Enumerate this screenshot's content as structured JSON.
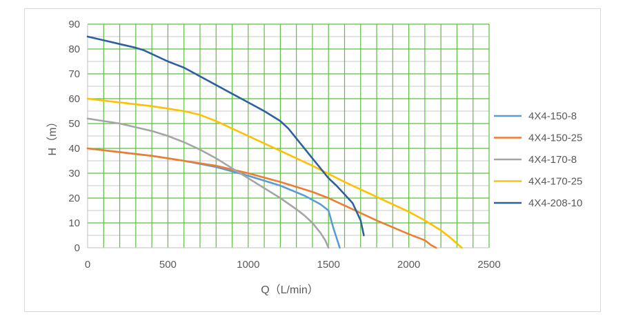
{
  "chart_data": {
    "type": "line",
    "title": "",
    "xlabel": "Q（L/min）",
    "ylabel": "H（m）",
    "xlim": [
      0,
      2500
    ],
    "ylim": [
      0,
      90
    ],
    "x_ticks": [
      0,
      500,
      1000,
      1500,
      2000,
      2500
    ],
    "y_ticks": [
      0,
      10,
      20,
      30,
      40,
      50,
      60,
      70,
      80,
      90
    ],
    "x_tick_labels": [
      "0",
      "500",
      "1000",
      "1500",
      "2000",
      "2500"
    ],
    "y_tick_labels": [
      "0",
      "10",
      "20",
      "30",
      "40",
      "50",
      "60",
      "70",
      "80",
      "90"
    ],
    "grid": true,
    "legend_position": "right",
    "colors": {
      "major_grid": "#5bbf3c",
      "minor_grid": "#c9c9c9",
      "axis": "#bfbfbf"
    },
    "series": [
      {
        "name": "4X4-150-8",
        "color": "#5b9bd5",
        "x": [
          0,
          200,
          400,
          600,
          800,
          1000,
          1200,
          1350,
          1450,
          1500,
          1530,
          1570
        ],
        "y": [
          40,
          38.5,
          37,
          35,
          32.5,
          29,
          25,
          21,
          17.5,
          15,
          8,
          0
        ]
      },
      {
        "name": "4X4-150-25",
        "color": "#ed7d31",
        "x": [
          0,
          200,
          400,
          600,
          800,
          1000,
          1200,
          1400,
          1500,
          1600,
          1800,
          2000,
          2100,
          2140,
          2170
        ],
        "y": [
          40,
          38.5,
          37,
          35,
          33,
          30,
          26.5,
          22.5,
          20,
          17,
          11,
          5.5,
          3,
          1,
          0
        ]
      },
      {
        "name": "4X4-170-8",
        "color": "#a5a5a5",
        "x": [
          0,
          100,
          200,
          300,
          400,
          500,
          600,
          700,
          800,
          900,
          1000,
          1100,
          1200,
          1300,
          1350,
          1400,
          1450,
          1480,
          1500
        ],
        "y": [
          52,
          51,
          50,
          48.5,
          47,
          45,
          42.5,
          39.5,
          36,
          32,
          28,
          24,
          20,
          15.5,
          13,
          10,
          6,
          3,
          0
        ]
      },
      {
        "name": "4X4-170-25",
        "color": "#ffc000",
        "x": [
          0,
          200,
          400,
          600,
          700,
          800,
          1000,
          1200,
          1400,
          1600,
          1800,
          2000,
          2100,
          2200,
          2260,
          2330
        ],
        "y": [
          60,
          58.5,
          57,
          55,
          53.5,
          51,
          45,
          39,
          33,
          26.5,
          20.5,
          14.5,
          11,
          7,
          4,
          0
        ]
      },
      {
        "name": "4X4-208-10",
        "color": "#2e5f9e",
        "x": [
          0,
          100,
          200,
          300,
          350,
          400,
          500,
          600,
          700,
          800,
          900,
          1000,
          1100,
          1200,
          1250,
          1300,
          1400,
          1500,
          1550,
          1600,
          1650,
          1700,
          1720
        ],
        "y": [
          85,
          83.5,
          82,
          80.5,
          79.5,
          78,
          75,
          72.5,
          69,
          65.5,
          62,
          58.5,
          55,
          51,
          48,
          44,
          36,
          28,
          25,
          21.5,
          18,
          11,
          5
        ]
      }
    ]
  }
}
